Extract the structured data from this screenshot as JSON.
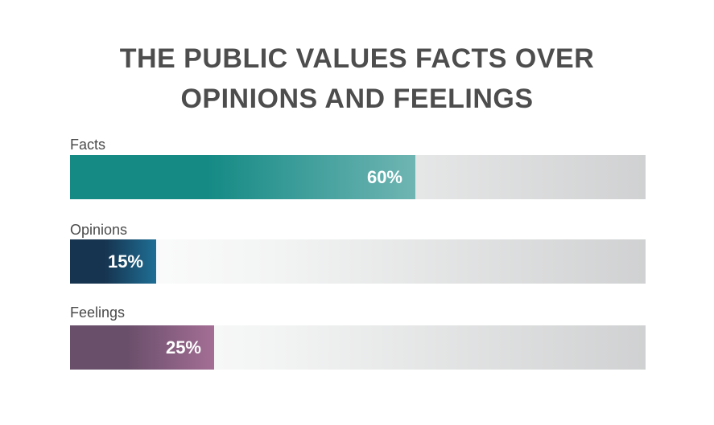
{
  "chart_data": {
    "type": "bar",
    "orientation": "horizontal",
    "title": "THE PUBLIC VALUES FACTS OVER OPINIONS AND FEELINGS",
    "title_lines": [
      "THE PUBLIC VALUES FACTS OVER",
      "OPINIONS AND FEELINGS"
    ],
    "categories": [
      "Facts",
      "Opinions",
      "Feelings"
    ],
    "values": [
      60,
      15,
      25
    ],
    "value_labels": [
      "60%",
      "15%",
      "25%"
    ],
    "xlim": [
      0,
      100
    ],
    "unit": "%",
    "colors": [
      [
        "#158a85",
        "#6fb5b3"
      ],
      [
        "#16344f",
        "#1f6e95"
      ],
      [
        "#6a4f6b",
        "#a46e95"
      ]
    ],
    "xlabel": "",
    "ylabel": "",
    "grid": false
  }
}
